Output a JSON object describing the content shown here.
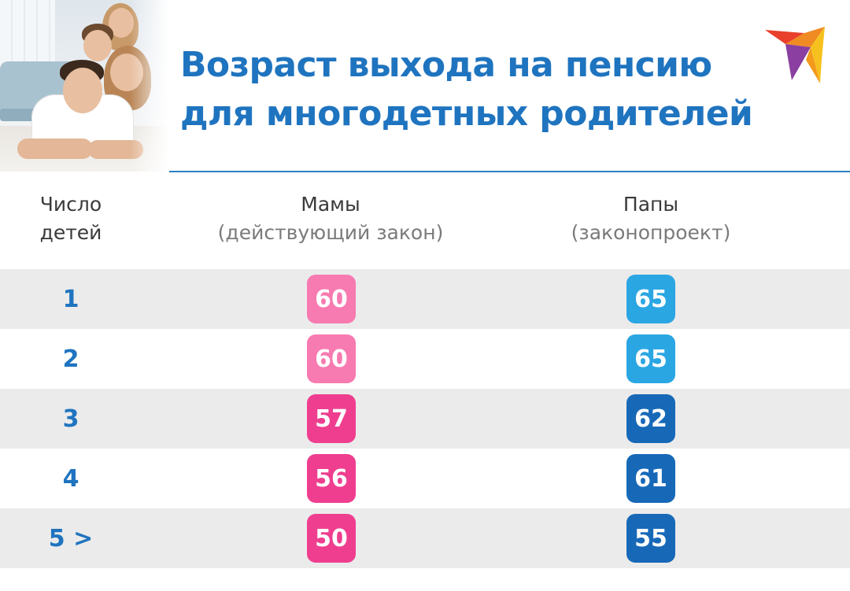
{
  "title": {
    "line1": "Возраст выхода на пенсию",
    "line2": "для многодетных родителей"
  },
  "logo": {
    "icon": "bird-logo-icon"
  },
  "table": {
    "headers": {
      "children": {
        "line1": "Число",
        "line2": "детей"
      },
      "moms": {
        "main": "Мамы",
        "sub": "(действующий закон)"
      },
      "dads": {
        "main": "Папы",
        "sub": "(законопроект)"
      }
    },
    "rows": [
      {
        "children": "1",
        "moms": "60",
        "dads": "65",
        "mom_color": "#f77ab0",
        "dad_color": "#2aa6e3"
      },
      {
        "children": "2",
        "moms": "60",
        "dads": "65",
        "mom_color": "#f77ab0",
        "dad_color": "#2aa6e3"
      },
      {
        "children": "3",
        "moms": "57",
        "dads": "62",
        "mom_color": "#ef3e8f",
        "dad_color": "#1769b8"
      },
      {
        "children": "4",
        "moms": "56",
        "dads": "61",
        "mom_color": "#ef3e8f",
        "dad_color": "#1769b8"
      },
      {
        "children": "5 >",
        "moms": "50",
        "dads": "55",
        "mom_color": "#ef3e8f",
        "dad_color": "#1769b8"
      }
    ]
  },
  "colors": {
    "title": "#1f74bf",
    "row_shade": "#ebebeb",
    "divider": "#2d7fc4"
  }
}
